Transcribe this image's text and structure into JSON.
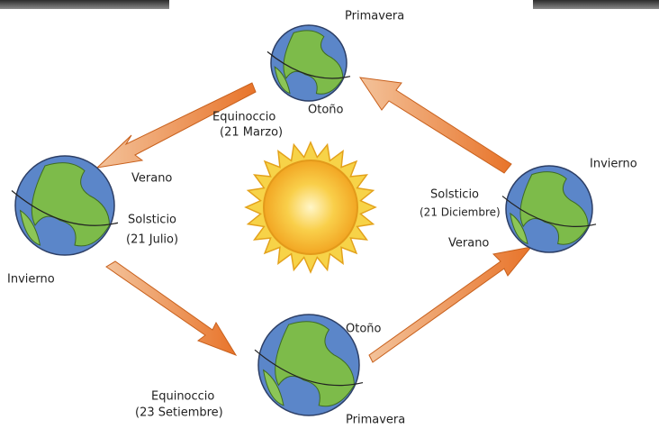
{
  "nodes": [
    {
      "event": "Equinoccio",
      "date": "(21 Marzo)",
      "labels": [
        "Primavera",
        "Otoño"
      ]
    },
    {
      "event": "Solsticio",
      "date": "(21 Julio)",
      "labels": [
        "Verano",
        "Invierno"
      ]
    },
    {
      "event": "Equinoccio",
      "date": "(23 Setiembre)",
      "labels": [
        "Otoño",
        "Primavera"
      ]
    },
    {
      "event": "Solsticio",
      "date": "(21 Diciembre)",
      "labels": [
        "Invierno",
        "Verano"
      ]
    }
  ]
}
